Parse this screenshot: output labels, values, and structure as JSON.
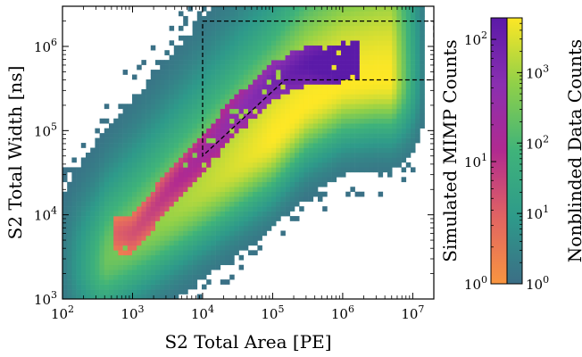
{
  "chart_data": {
    "type": "heatmap",
    "title": "",
    "xlabel": "S2 Total Area [PE]",
    "ylabel": "S2 Total Width [ns]",
    "x_scale": "log",
    "y_scale": "log",
    "xlim": [
      100,
      20000000
    ],
    "ylim": [
      1000,
      3000000
    ],
    "x_ticks": [
      {
        "base": "10",
        "exp": "2",
        "value": 100
      },
      {
        "base": "10",
        "exp": "3",
        "value": 1000
      },
      {
        "base": "10",
        "exp": "4",
        "value": 10000
      },
      {
        "base": "10",
        "exp": "5",
        "value": 100000
      },
      {
        "base": "10",
        "exp": "6",
        "value": 1000000
      },
      {
        "base": "10",
        "exp": "7",
        "value": 10000000
      }
    ],
    "y_ticks": [
      {
        "base": "10",
        "exp": "3",
        "value": 1000
      },
      {
        "base": "10",
        "exp": "4",
        "value": 10000
      },
      {
        "base": "10",
        "exp": "5",
        "value": 100000
      },
      {
        "base": "10",
        "exp": "6",
        "value": 1000000
      }
    ],
    "series": [
      {
        "name": "Simulated MIMP Counts",
        "colormap": "plasma",
        "color_range": [
          1,
          150
        ],
        "ridge": [
          [
            1000,
            6000
          ],
          [
            3000,
            18000
          ],
          [
            10000,
            55000
          ],
          [
            30000,
            150000
          ],
          [
            100000,
            380000
          ],
          [
            300000,
            600000
          ],
          [
            1000000,
            650000
          ]
        ]
      },
      {
        "name": "Nonblinded Data Counts",
        "colormap": "viridis",
        "color_range": [
          1,
          6000
        ],
        "ridge": [
          [
            300,
            2500
          ],
          [
            1000,
            5000
          ],
          [
            10000,
            20000
          ],
          [
            100000,
            80000
          ],
          [
            300000,
            200000
          ],
          [
            1000000,
            350000
          ],
          [
            3000000,
            400000
          ]
        ]
      }
    ],
    "selection_region": {
      "style": "dashed",
      "color": "#000000",
      "outline": [
        [
          10000,
          2000000
        ],
        [
          20000000,
          2000000
        ],
        [
          20000000,
          400000
        ],
        [
          150000,
          400000
        ],
        [
          10000,
          50000
        ],
        [
          10000,
          2000000
        ]
      ]
    },
    "colorbars": [
      {
        "label": "Simulated MIMP Counts",
        "colormap": "plasma",
        "scale": "log",
        "range": [
          1,
          150
        ],
        "ticks": [
          {
            "base": "10",
            "exp": "0",
            "value": 1
          },
          {
            "base": "10",
            "exp": "1",
            "value": 10
          },
          {
            "base": "10",
            "exp": "2",
            "value": 100
          }
        ],
        "tick_side": "left"
      },
      {
        "label": "Nonblinded Data Counts",
        "colormap": "viridis",
        "scale": "log",
        "range": [
          1,
          6000
        ],
        "ticks": [
          {
            "base": "10",
            "exp": "0",
            "value": 1
          },
          {
            "base": "10",
            "exp": "1",
            "value": 10
          },
          {
            "base": "10",
            "exp": "2",
            "value": 100
          },
          {
            "base": "10",
            "exp": "3",
            "value": 1000
          }
        ],
        "tick_side": "right"
      }
    ],
    "grid": false,
    "legend": "none"
  }
}
